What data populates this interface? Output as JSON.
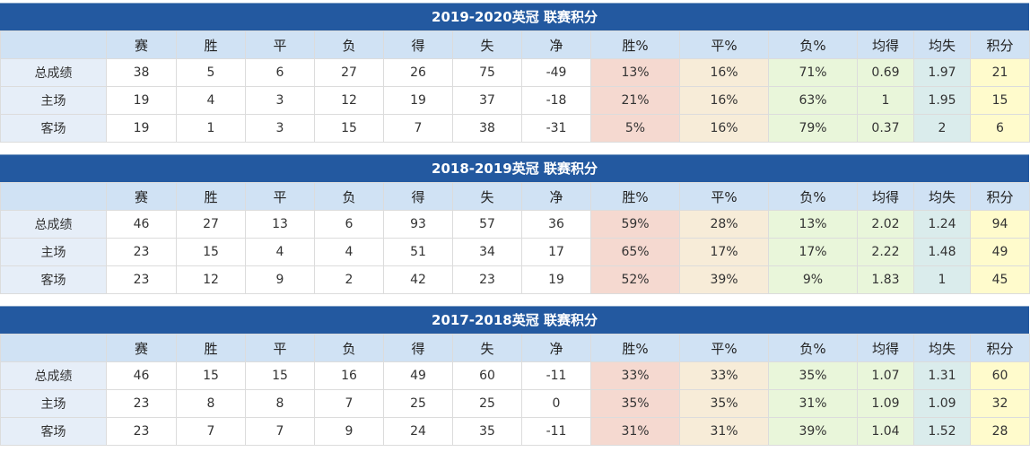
{
  "headers": [
    "",
    "赛",
    "胜",
    "平",
    "负",
    "得",
    "失",
    "净",
    "胜%",
    "平%",
    "负%",
    "均得",
    "均失",
    "积分"
  ],
  "tables": [
    {
      "title": "2019-2020英冠 联赛积分",
      "rows": [
        [
          "总成绩",
          "38",
          "5",
          "6",
          "27",
          "26",
          "75",
          "-49",
          "13%",
          "16%",
          "71%",
          "0.69",
          "1.97",
          "21"
        ],
        [
          "主场",
          "19",
          "4",
          "3",
          "12",
          "19",
          "37",
          "-18",
          "21%",
          "16%",
          "63%",
          "1",
          "1.95",
          "15"
        ],
        [
          "客场",
          "19",
          "1",
          "3",
          "15",
          "7",
          "38",
          "-31",
          "5%",
          "16%",
          "79%",
          "0.37",
          "2",
          "6"
        ]
      ]
    },
    {
      "title": "2018-2019英冠 联赛积分",
      "rows": [
        [
          "总成绩",
          "46",
          "27",
          "13",
          "6",
          "93",
          "57",
          "36",
          "59%",
          "28%",
          "13%",
          "2.02",
          "1.24",
          "94"
        ],
        [
          "主场",
          "23",
          "15",
          "4",
          "4",
          "51",
          "34",
          "17",
          "65%",
          "17%",
          "17%",
          "2.22",
          "1.48",
          "49"
        ],
        [
          "客场",
          "23",
          "12",
          "9",
          "2",
          "42",
          "23",
          "19",
          "52%",
          "39%",
          "9%",
          "1.83",
          "1",
          "45"
        ]
      ]
    },
    {
      "title": "2017-2018英冠 联赛积分",
      "rows": [
        [
          "总成绩",
          "46",
          "15",
          "15",
          "16",
          "49",
          "60",
          "-11",
          "33%",
          "33%",
          "35%",
          "1.07",
          "1.31",
          "60"
        ],
        [
          "主场",
          "23",
          "8",
          "8",
          "7",
          "25",
          "25",
          "0",
          "35%",
          "35%",
          "31%",
          "1.09",
          "1.09",
          "32"
        ],
        [
          "客场",
          "23",
          "7",
          "7",
          "9",
          "24",
          "35",
          "-11",
          "31%",
          "31%",
          "39%",
          "1.04",
          "1.52",
          "28"
        ]
      ]
    }
  ]
}
